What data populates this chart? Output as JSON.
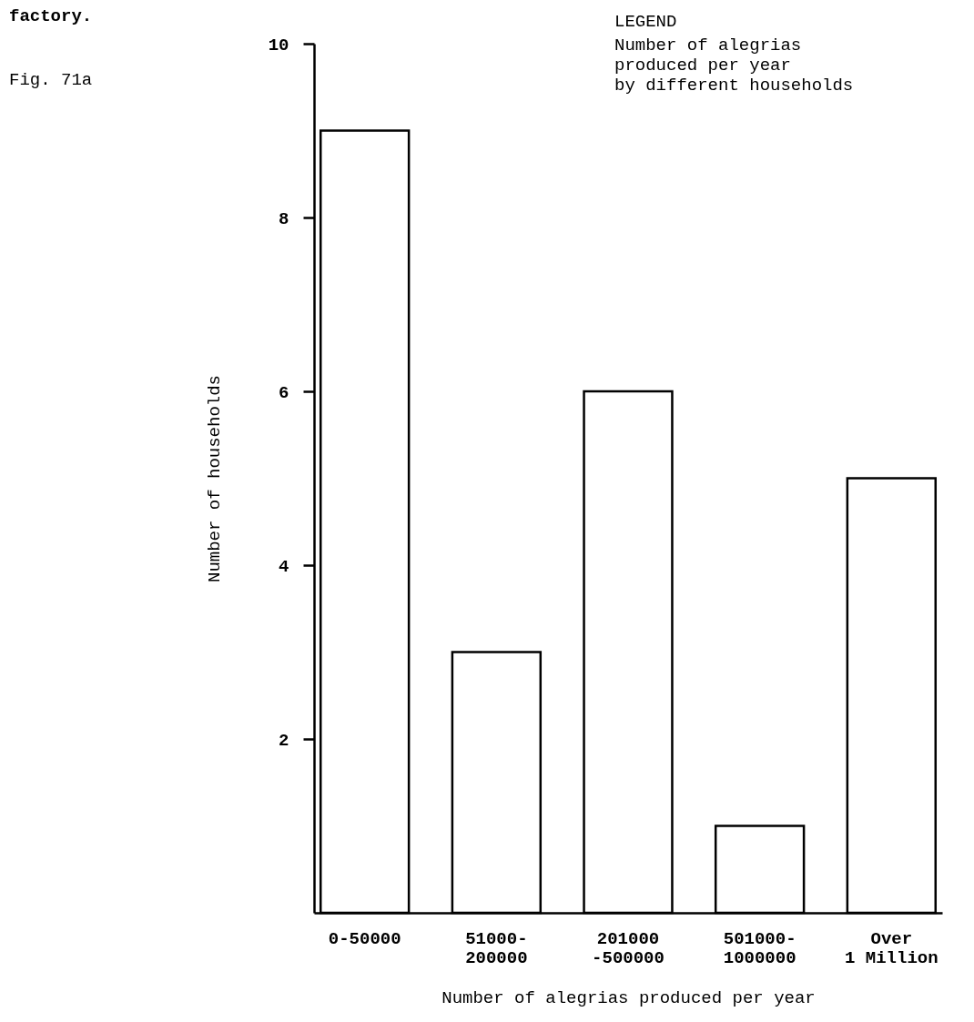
{
  "chart_data": {
    "type": "bar",
    "title": "factory.",
    "xlabel": "Number of alegrias produced per year",
    "ylabel": "Number of households",
    "legend_title": "LEGEND",
    "annotations": [
      "Fig. 71a",
      "Number of alegrias\nproduced per year\nby different households"
    ],
    "categories": [
      "0-50000",
      "51000-\n200000",
      "201000\n-500000",
      "501000-\n1000000",
      "Over\n1 Million"
    ],
    "values": [
      9,
      3,
      6,
      1,
      5
    ],
    "color": "#ffffff",
    "ylim": [
      0,
      10
    ],
    "yticks": [
      2,
      4,
      6,
      8,
      10
    ],
    "grid": false
  }
}
